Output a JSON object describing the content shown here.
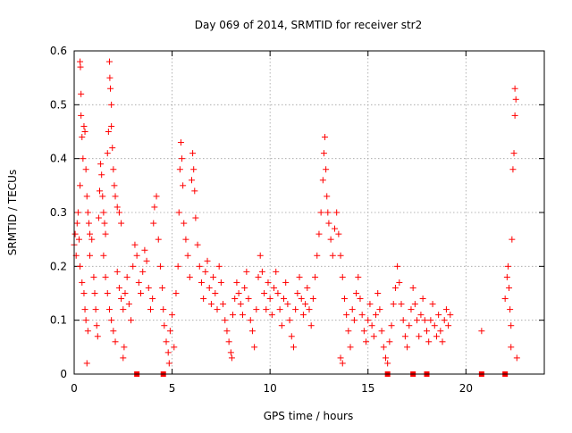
{
  "chart_data": {
    "type": "scatter",
    "title": "Day 069 of 2014, SRMTID for receiver str2",
    "xlabel": "GPS time / hours",
    "ylabel": "SRMTID / TECUs",
    "xlim": [
      0,
      24
    ],
    "ylim": [
      0,
      0.6
    ],
    "x_ticks": [
      0,
      5,
      10,
      15,
      20
    ],
    "y_ticks": [
      0,
      0.1,
      0.2,
      0.3,
      0.4,
      0.5,
      0.6
    ],
    "x_tick_labels": [
      "0",
      "5",
      "10",
      "15",
      "20"
    ],
    "y_tick_labels": [
      "0",
      "0.1",
      "0.2",
      "0.3",
      "0.4",
      "0.5",
      "0.6"
    ],
    "grid": true,
    "marker": "+",
    "color": "#ff0000",
    "series": [
      {
        "name": "str2",
        "points": [
          [
            0.0,
            0.24
          ],
          [
            0.05,
            0.26
          ],
          [
            0.1,
            0.22
          ],
          [
            0.15,
            0.28
          ],
          [
            0.2,
            0.3
          ],
          [
            0.25,
            0.25
          ],
          [
            0.3,
            0.35
          ],
          [
            0.3,
            0.58
          ],
          [
            0.32,
            0.57
          ],
          [
            0.35,
            0.52
          ],
          [
            0.35,
            0.48
          ],
          [
            0.4,
            0.44
          ],
          [
            0.45,
            0.4
          ],
          [
            0.5,
            0.46
          ],
          [
            0.55,
            0.45
          ],
          [
            0.6,
            0.38
          ],
          [
            0.65,
            0.33
          ],
          [
            0.7,
            0.3
          ],
          [
            0.75,
            0.28
          ],
          [
            0.8,
            0.26
          ],
          [
            0.3,
            0.2
          ],
          [
            0.4,
            0.17
          ],
          [
            0.5,
            0.15
          ],
          [
            0.55,
            0.12
          ],
          [
            0.6,
            0.1
          ],
          [
            0.7,
            0.08
          ],
          [
            0.65,
            0.02
          ],
          [
            0.8,
            0.22
          ],
          [
            0.9,
            0.25
          ],
          [
            1.0,
            0.18
          ],
          [
            1.05,
            0.15
          ],
          [
            1.1,
            0.12
          ],
          [
            1.15,
            0.09
          ],
          [
            1.2,
            0.07
          ],
          [
            1.25,
            0.29
          ],
          [
            1.3,
            0.34
          ],
          [
            1.35,
            0.39
          ],
          [
            1.4,
            0.37
          ],
          [
            1.45,
            0.33
          ],
          [
            1.5,
            0.3
          ],
          [
            1.55,
            0.28
          ],
          [
            1.6,
            0.26
          ],
          [
            1.7,
            0.41
          ],
          [
            1.75,
            0.45
          ],
          [
            1.8,
            0.58
          ],
          [
            1.82,
            0.55
          ],
          [
            1.85,
            0.53
          ],
          [
            1.9,
            0.5
          ],
          [
            1.9,
            0.46
          ],
          [
            1.95,
            0.42
          ],
          [
            2.0,
            0.38
          ],
          [
            2.05,
            0.35
          ],
          [
            2.1,
            0.33
          ],
          [
            2.2,
            0.31
          ],
          [
            2.3,
            0.3
          ],
          [
            2.4,
            0.28
          ],
          [
            1.5,
            0.22
          ],
          [
            1.6,
            0.18
          ],
          [
            1.7,
            0.15
          ],
          [
            1.8,
            0.12
          ],
          [
            1.9,
            0.1
          ],
          [
            2.0,
            0.08
          ],
          [
            2.1,
            0.06
          ],
          [
            2.2,
            0.19
          ],
          [
            2.3,
            0.16
          ],
          [
            2.4,
            0.14
          ],
          [
            2.5,
            0.12
          ],
          [
            2.5,
            0.03
          ],
          [
            2.55,
            0.05
          ],
          [
            2.6,
            0.15
          ],
          [
            2.7,
            0.18
          ],
          [
            2.8,
            0.13
          ],
          [
            2.9,
            0.1
          ],
          [
            3.0,
            0.2
          ],
          [
            3.1,
            0.24
          ],
          [
            3.2,
            0.22
          ],
          [
            3.3,
            0.17
          ],
          [
            3.4,
            0.15
          ],
          [
            3.5,
            0.19
          ],
          [
            3.6,
            0.23
          ],
          [
            3.7,
            0.21
          ],
          [
            3.8,
            0.16
          ],
          [
            3.9,
            0.12
          ],
          [
            4.0,
            0.14
          ],
          [
            4.05,
            0.28
          ],
          [
            4.1,
            0.31
          ],
          [
            4.2,
            0.33
          ],
          [
            4.3,
            0.25
          ],
          [
            4.4,
            0.2
          ],
          [
            4.5,
            0.16
          ],
          [
            4.55,
            0.12
          ],
          [
            4.6,
            0.09
          ],
          [
            4.7,
            0.06
          ],
          [
            4.8,
            0.04
          ],
          [
            4.85,
            0.02
          ],
          [
            4.9,
            0.08
          ],
          [
            5.0,
            0.11
          ],
          [
            5.1,
            0.05
          ],
          [
            5.2,
            0.15
          ],
          [
            5.3,
            0.2
          ],
          [
            5.35,
            0.3
          ],
          [
            5.4,
            0.38
          ],
          [
            5.45,
            0.43
          ],
          [
            5.5,
            0.4
          ],
          [
            5.55,
            0.35
          ],
          [
            5.6,
            0.28
          ],
          [
            5.7,
            0.25
          ],
          [
            5.8,
            0.22
          ],
          [
            5.9,
            0.18
          ],
          [
            6.0,
            0.36
          ],
          [
            6.05,
            0.41
          ],
          [
            6.1,
            0.38
          ],
          [
            6.15,
            0.34
          ],
          [
            6.2,
            0.29
          ],
          [
            6.3,
            0.24
          ],
          [
            6.4,
            0.2
          ],
          [
            6.5,
            0.17
          ],
          [
            6.6,
            0.14
          ],
          [
            6.7,
            0.19
          ],
          [
            6.8,
            0.21
          ],
          [
            6.9,
            0.16
          ],
          [
            7.0,
            0.13
          ],
          [
            7.1,
            0.18
          ],
          [
            7.2,
            0.15
          ],
          [
            7.3,
            0.12
          ],
          [
            7.4,
            0.2
          ],
          [
            7.5,
            0.17
          ],
          [
            7.6,
            0.13
          ],
          [
            7.7,
            0.1
          ],
          [
            7.8,
            0.08
          ],
          [
            7.9,
            0.06
          ],
          [
            8.0,
            0.04
          ],
          [
            8.05,
            0.03
          ],
          [
            8.1,
            0.11
          ],
          [
            8.2,
            0.14
          ],
          [
            8.3,
            0.17
          ],
          [
            8.4,
            0.15
          ],
          [
            8.5,
            0.13
          ],
          [
            8.6,
            0.11
          ],
          [
            8.7,
            0.16
          ],
          [
            8.8,
            0.19
          ],
          [
            8.9,
            0.14
          ],
          [
            9.0,
            0.1
          ],
          [
            9.1,
            0.08
          ],
          [
            9.2,
            0.05
          ],
          [
            9.3,
            0.12
          ],
          [
            9.4,
            0.18
          ],
          [
            9.5,
            0.22
          ],
          [
            9.6,
            0.19
          ],
          [
            9.7,
            0.15
          ],
          [
            9.8,
            0.12
          ],
          [
            9.9,
            0.17
          ],
          [
            10.0,
            0.14
          ],
          [
            10.1,
            0.11
          ],
          [
            10.2,
            0.16
          ],
          [
            10.3,
            0.19
          ],
          [
            10.4,
            0.15
          ],
          [
            10.5,
            0.12
          ],
          [
            10.6,
            0.09
          ],
          [
            10.7,
            0.14
          ],
          [
            10.8,
            0.17
          ],
          [
            10.9,
            0.13
          ],
          [
            11.0,
            0.1
          ],
          [
            11.1,
            0.07
          ],
          [
            11.2,
            0.05
          ],
          [
            11.3,
            0.12
          ],
          [
            11.4,
            0.15
          ],
          [
            11.5,
            0.18
          ],
          [
            11.6,
            0.14
          ],
          [
            11.7,
            0.11
          ],
          [
            11.8,
            0.13
          ],
          [
            11.9,
            0.16
          ],
          [
            12.0,
            0.12
          ],
          [
            12.1,
            0.09
          ],
          [
            12.2,
            0.14
          ],
          [
            12.3,
            0.18
          ],
          [
            12.4,
            0.22
          ],
          [
            12.5,
            0.26
          ],
          [
            12.6,
            0.3
          ],
          [
            12.7,
            0.36
          ],
          [
            12.75,
            0.41
          ],
          [
            12.8,
            0.44
          ],
          [
            12.85,
            0.38
          ],
          [
            12.9,
            0.33
          ],
          [
            12.95,
            0.3
          ],
          [
            13.0,
            0.28
          ],
          [
            13.1,
            0.25
          ],
          [
            13.2,
            0.22
          ],
          [
            13.3,
            0.27
          ],
          [
            13.4,
            0.3
          ],
          [
            13.5,
            0.26
          ],
          [
            13.6,
            0.22
          ],
          [
            13.7,
            0.18
          ],
          [
            13.8,
            0.14
          ],
          [
            13.6,
            0.03
          ],
          [
            13.7,
            0.02
          ],
          [
            13.9,
            0.11
          ],
          [
            14.0,
            0.08
          ],
          [
            14.1,
            0.05
          ],
          [
            14.2,
            0.12
          ],
          [
            14.3,
            0.1
          ],
          [
            14.4,
            0.15
          ],
          [
            14.5,
            0.18
          ],
          [
            14.6,
            0.14
          ],
          [
            14.7,
            0.11
          ],
          [
            14.8,
            0.08
          ],
          [
            14.9,
            0.06
          ],
          [
            15.0,
            0.1
          ],
          [
            15.1,
            0.13
          ],
          [
            15.2,
            0.09
          ],
          [
            15.3,
            0.07
          ],
          [
            15.4,
            0.11
          ],
          [
            15.5,
            0.15
          ],
          [
            15.6,
            0.12
          ],
          [
            15.7,
            0.08
          ],
          [
            15.8,
            0.05
          ],
          [
            15.9,
            0.03
          ],
          [
            16.0,
            0.02
          ],
          [
            16.1,
            0.06
          ],
          [
            16.2,
            0.09
          ],
          [
            16.3,
            0.13
          ],
          [
            16.4,
            0.16
          ],
          [
            16.5,
            0.2
          ],
          [
            16.6,
            0.17
          ],
          [
            16.7,
            0.13
          ],
          [
            16.8,
            0.1
          ],
          [
            16.9,
            0.07
          ],
          [
            17.0,
            0.05
          ],
          [
            17.1,
            0.09
          ],
          [
            17.2,
            0.12
          ],
          [
            17.3,
            0.16
          ],
          [
            17.4,
            0.13
          ],
          [
            17.5,
            0.1
          ],
          [
            17.6,
            0.07
          ],
          [
            17.7,
            0.11
          ],
          [
            17.8,
            0.14
          ],
          [
            17.9,
            0.1
          ],
          [
            18.0,
            0.08
          ],
          [
            18.1,
            0.06
          ],
          [
            18.2,
            0.1
          ],
          [
            18.3,
            0.13
          ],
          [
            18.4,
            0.09
          ],
          [
            18.5,
            0.07
          ],
          [
            18.6,
            0.11
          ],
          [
            18.7,
            0.08
          ],
          [
            18.8,
            0.06
          ],
          [
            18.9,
            0.1
          ],
          [
            19.0,
            0.12
          ],
          [
            19.1,
            0.09
          ],
          [
            19.2,
            0.11
          ],
          [
            20.8,
            0.08
          ],
          [
            22.0,
            0.14
          ],
          [
            22.1,
            0.18
          ],
          [
            22.15,
            0.2
          ],
          [
            22.2,
            0.16
          ],
          [
            22.25,
            0.12
          ],
          [
            22.3,
            0.09
          ],
          [
            22.3,
            0.05
          ],
          [
            22.35,
            0.25
          ],
          [
            22.4,
            0.38
          ],
          [
            22.45,
            0.41
          ],
          [
            22.5,
            0.48
          ],
          [
            22.5,
            0.53
          ],
          [
            22.55,
            0.51
          ],
          [
            22.6,
            0.03
          ]
        ]
      }
    ],
    "zero_markers_x": [
      3.2,
      4.55,
      16.0,
      17.3,
      18.0,
      20.8,
      22.0
    ]
  }
}
